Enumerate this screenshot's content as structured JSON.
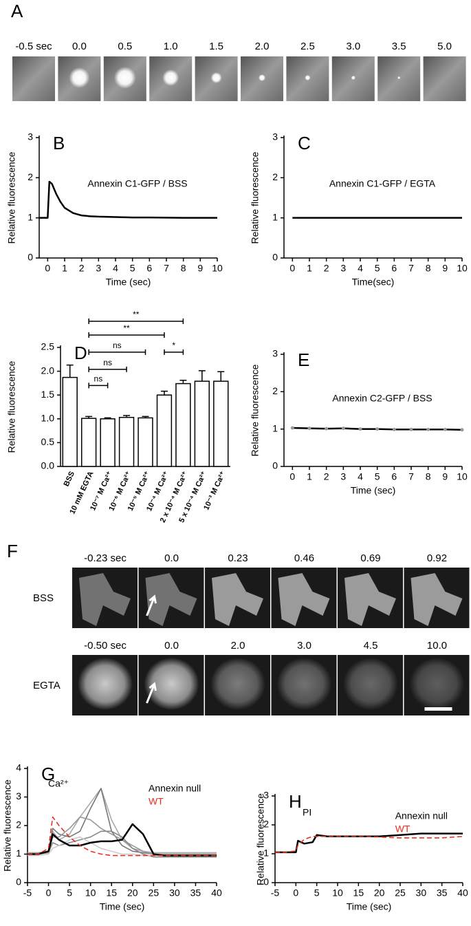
{
  "panel_a": {
    "label": "A",
    "times": [
      "-0.5 sec",
      "0.0",
      "0.5",
      "1.0",
      "1.5",
      "2.0",
      "2.5",
      "3.0",
      "3.5",
      "5.0"
    ]
  },
  "panel_f": {
    "label": "F",
    "rows": [
      {
        "name": "BSS",
        "times": [
          "-0.23 sec",
          "0.0",
          "0.23",
          "0.46",
          "0.69",
          "0.92"
        ]
      },
      {
        "name": "EGTA",
        "times": [
          "-0.50 sec",
          "0.0",
          "2.0",
          "3.0",
          "4.5",
          "10.0"
        ]
      }
    ]
  },
  "chart_data": [
    {
      "type": "line",
      "panel_label": "B",
      "annotation": "Annexin C1-GFP / BSS",
      "xlabel": "Time (sec)",
      "ylabel": "Relative fluorescence",
      "xlim": [
        -0.5,
        10
      ],
      "ylim": [
        0,
        3
      ],
      "xticks": [
        0,
        1,
        2,
        3,
        4,
        5,
        6,
        7,
        8,
        9,
        10
      ],
      "yticks": [
        0,
        1,
        2,
        3
      ],
      "x": [
        -0.5,
        0,
        0.1,
        0.25,
        0.5,
        0.75,
        1,
        1.5,
        2,
        2.5,
        3,
        4,
        5,
        6,
        8,
        10
      ],
      "series": [
        {
          "color": "#000000",
          "values": [
            1,
            1,
            1.9,
            1.85,
            1.6,
            1.4,
            1.25,
            1.12,
            1.06,
            1.04,
            1.03,
            1.02,
            1.01,
            1.01,
            1.0,
            1.0
          ]
        }
      ]
    },
    {
      "type": "line",
      "panel_label": "C",
      "annotation": "Annexin C1-GFP / EGTA",
      "xlabel": "Time(sec)",
      "ylabel": "Relative fluorescence",
      "xlim": [
        -0.5,
        10
      ],
      "ylim": [
        0,
        3
      ],
      "xticks": [
        0,
        1,
        2,
        3,
        4,
        5,
        6,
        7,
        8,
        9,
        10
      ],
      "yticks": [
        0,
        1,
        2,
        3
      ],
      "x": [
        0,
        1,
        2,
        3,
        4,
        5,
        6,
        7,
        8,
        9,
        10
      ],
      "series": [
        {
          "color": "#000000",
          "values": [
            1,
            1,
            1,
            1,
            1,
            1,
            1,
            1,
            1,
            1,
            1
          ]
        }
      ]
    },
    {
      "type": "bar",
      "panel_label": "D",
      "ylabel": "Relative fluorescence",
      "categories": [
        "BSS",
        "10 mM EGTA",
        "10⁻⁷ M Ca²⁺",
        "10⁻⁶ M Ca²⁺",
        "10⁻⁵ M Ca²⁺",
        "10⁻⁴ M Ca²⁺",
        "2 x 10⁻⁴ M Ca²⁺",
        "5 x 10⁻⁴ M Ca²⁺",
        "10⁻³ M Ca²⁺"
      ],
      "values": [
        1.87,
        1.01,
        1.0,
        1.03,
        1.02,
        1.5,
        1.74,
        1.79,
        1.79
      ],
      "errors": [
        0.26,
        0.04,
        0.02,
        0.04,
        0.03,
        0.08,
        0.07,
        0.22,
        0.2
      ],
      "color": "#ffffff",
      "ylim": [
        0,
        2.5
      ],
      "yticks": [
        {
          "value": 0,
          "label": "0.0"
        },
        0.5,
        {
          "value": 1,
          "label": "1.0"
        },
        1.5,
        {
          "value": 2,
          "label": "2.0"
        },
        2.5
      ],
      "significance": [
        {
          "from": 1,
          "to": 6,
          "label": "**",
          "y": 3.05
        },
        {
          "from": 1,
          "to": 5,
          "label": "**",
          "y": 2.76
        },
        {
          "from": 1,
          "to": 4,
          "label": "ns",
          "y": 2.4
        },
        {
          "from": 5,
          "to": 6,
          "label": "*",
          "y": 2.4
        },
        {
          "from": 1,
          "to": 3,
          "label": "ns",
          "y": 2.04
        },
        {
          "from": 1,
          "to": 2,
          "label": "ns",
          "y": 1.7
        }
      ]
    },
    {
      "type": "line",
      "panel_label": "E",
      "annotation": "Annexin C2-GFP / BSS",
      "xlabel": "Time (sec)",
      "ylabel": "Relative fluorescence",
      "xlim": [
        -0.5,
        10
      ],
      "ylim": [
        0,
        3
      ],
      "xticks": [
        0,
        1,
        2,
        3,
        4,
        5,
        6,
        7,
        8,
        9,
        10
      ],
      "yticks": [
        0,
        1,
        2,
        3
      ],
      "x": [
        0,
        1,
        2,
        3,
        4,
        5,
        6,
        7,
        8,
        9,
        10
      ],
      "marker_color": "#999999",
      "series": [
        {
          "color": "#000000",
          "values": [
            1.03,
            1.02,
            1.01,
            1.02,
            1.0,
            1.0,
            0.99,
            0.99,
            0.99,
            0.99,
            0.98
          ]
        }
      ]
    },
    {
      "type": "line",
      "panel_label": "G",
      "annotation": "Ca²⁺",
      "xlabel": "Time (sec)",
      "ylabel": "Relative fluorescence",
      "xlim": [
        -5,
        40
      ],
      "ylim": [
        0,
        4
      ],
      "xticks": [
        -5,
        0,
        5,
        10,
        15,
        20,
        25,
        30,
        35,
        40
      ],
      "yticks": [
        0,
        1,
        2,
        3,
        4
      ],
      "legend": "upper right",
      "x": [
        -5,
        -2.5,
        0,
        1,
        2.5,
        5,
        7.5,
        10,
        12.5,
        15,
        17.5,
        20,
        22.5,
        25,
        27.5,
        30,
        35,
        40
      ],
      "series": [
        {
          "color": "#aaaaaa",
          "values": [
            1.05,
            1.05,
            1.1,
            1.8,
            1.5,
            1.7,
            2.3,
            2.8,
            3.3,
            2.2,
            1.5,
            1.2,
            1.1,
            1.05,
            1.05,
            1.05,
            1.05,
            1.05
          ]
        },
        {
          "color": "#777777",
          "values": [
            1,
            1,
            1.1,
            1.9,
            1.7,
            1.6,
            1.8,
            2.6,
            3.3,
            1.8,
            1.3,
            1.1,
            1.05,
            1,
            1,
            1,
            1,
            1
          ]
        },
        {
          "color": "#999999",
          "values": [
            1,
            1,
            1.05,
            1.6,
            1.6,
            1.9,
            2.3,
            2.2,
            1.9,
            1.7,
            1.5,
            1.3,
            1.1,
            1.0,
            1.0,
            1.0,
            1.0,
            1.0
          ]
        },
        {
          "color": "#888888",
          "values": [
            1,
            1,
            1.05,
            1.4,
            1.3,
            1.4,
            1.5,
            1.6,
            1.8,
            1.8,
            1.6,
            1.2,
            1.0,
            0.9,
            0.9,
            0.9,
            0.9,
            0.9
          ]
        },
        {
          "color": "#cccccc",
          "values": [
            0.95,
            0.95,
            1.0,
            1.2,
            1.3,
            1.5,
            1.6,
            1.4,
            1.2,
            1.1,
            1.0,
            1.0,
            0.95,
            0.95,
            0.95,
            0.95,
            0.95,
            0.95
          ]
        },
        {
          "name": "Annexin null",
          "color": "#000000",
          "values": [
            1,
            1,
            1.1,
            1.7,
            1.5,
            1.3,
            1.3,
            1.4,
            1.45,
            1.45,
            1.5,
            2.05,
            1.7,
            1.0,
            0.95,
            0.95,
            0.95,
            0.95
          ]
        },
        {
          "name": "WT",
          "color": "#e8301c",
          "dashed": true,
          "values": [
            1,
            1,
            1.2,
            2.3,
            2.0,
            1.6,
            1.3,
            1.1,
            1.0,
            0.95,
            0.95,
            0.95,
            0.95,
            0.95,
            0.95,
            0.95,
            0.95,
            0.95
          ]
        }
      ]
    },
    {
      "type": "line",
      "panel_label": "H",
      "annotation": "PI",
      "xlabel": "Time (sec)",
      "ylabel": "Relative fluorescence",
      "xlim": [
        -5,
        40
      ],
      "ylim": [
        0,
        3
      ],
      "xticks": [
        -5,
        0,
        5,
        10,
        15,
        20,
        25,
        30,
        35,
        40
      ],
      "yticks": [
        0,
        1,
        2,
        3
      ],
      "legend": "upper right",
      "x": [
        -5,
        -2.5,
        0,
        0.5,
        2,
        4,
        5,
        7.5,
        10,
        15,
        20,
        25,
        30,
        35,
        40
      ],
      "series": [
        {
          "name": "Annexin null",
          "color": "#000000",
          "values": [
            1.05,
            1.05,
            1.05,
            1.45,
            1.35,
            1.4,
            1.65,
            1.6,
            1.6,
            1.6,
            1.6,
            1.65,
            1.7,
            1.7,
            1.7
          ]
        },
        {
          "name": "WT",
          "color": "#e8301c",
          "dashed": true,
          "values": [
            1.05,
            1.05,
            1.1,
            1.3,
            1.5,
            1.6,
            1.6,
            1.6,
            1.6,
            1.6,
            1.58,
            1.55,
            1.55,
            1.55,
            1.6
          ]
        }
      ]
    }
  ]
}
